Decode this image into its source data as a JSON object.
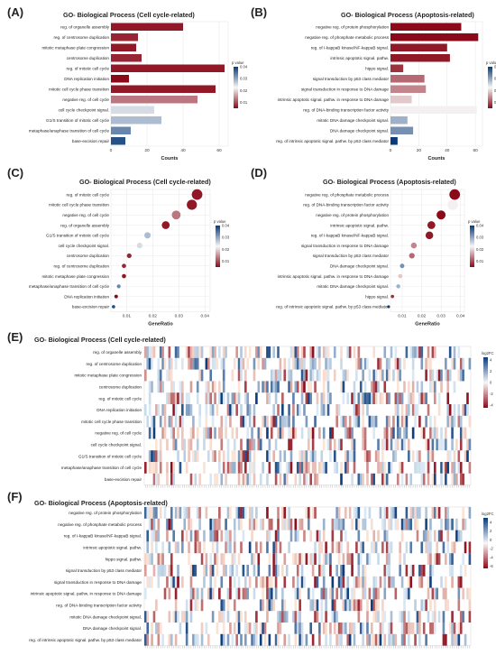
{
  "panels": {
    "A": {
      "letter": "(A)",
      "title": "GO- Biological Process (Cell cycle-related)"
    },
    "B": {
      "letter": "(B)",
      "title": "GO- Biological Process (Apoptosis-related)"
    },
    "C": {
      "letter": "(C)",
      "title": "GO- Biological Process (Cell cycle-related)"
    },
    "D": {
      "letter": "(D)",
      "title": "GO- Biological Process (Apoptosis-related)"
    },
    "E": {
      "letter": "(E)",
      "title": "GO- Biological Process (Cell cycle-related)"
    },
    "F": {
      "letter": "(F)",
      "title": "GO- Biological Process (Apoptosis-related)"
    }
  },
  "colors": {
    "low": "#0a3a7a",
    "mid": "#f7f7f7",
    "high": "#8b0a1a",
    "grid": "#e6e6e6",
    "panel_bg": "#ffffff"
  },
  "chart_data": [
    {
      "id": "A",
      "type": "bar",
      "orientation": "horizontal",
      "xlabel": "Counts",
      "xlim": [
        0,
        65
      ],
      "xticks": [
        0,
        20,
        40,
        60
      ],
      "legend": {
        "title": "p value",
        "ticks": [
          0.04,
          0.03,
          0.02,
          0.01
        ],
        "range": [
          0.005,
          0.04
        ]
      },
      "categories": [
        "reg. of organelle assembly",
        "reg. of centrosome duplication",
        "mitotic metaphase plate congression",
        "centrosome duplication",
        "reg. of mitotic cell cycle",
        "DNA replication initiation",
        "mitotic cell cycle phase transition",
        "negative reg. of cell cycle",
        "cell cycle checkpoint signal.",
        "G1/S transition of mitotic cell cycle",
        "metaphase/anaphase transition of cell cycle",
        "base-excision repair"
      ],
      "values": [
        40,
        15,
        14,
        17,
        63,
        10,
        58,
        48,
        24,
        28,
        11,
        8
      ],
      "pvalues": [
        0.006,
        0.007,
        0.006,
        0.007,
        0.006,
        0.005,
        0.006,
        0.013,
        0.025,
        0.028,
        0.033,
        0.038
      ]
    },
    {
      "id": "B",
      "type": "bar",
      "orientation": "horizontal",
      "xlabel": "Counts",
      "xlim": [
        0,
        65
      ],
      "xticks": [
        0,
        20,
        40,
        60
      ],
      "legend": {
        "title": "p value",
        "ticks": [
          0.04,
          0.03,
          0.02,
          0.01
        ],
        "range": [
          0.005,
          0.04
        ]
      },
      "categories": [
        "negative reg. of protein phosphorylation",
        "negative reg. of phosphate metabolic process",
        "reg. of I-kappaB kinase/NF-kappaB signal.",
        "intrinsic apoptotic signal. pathw.",
        "hippo signal.",
        "signal transduction by p53 class mediator",
        "signal transduction in response to DNA damage",
        "intrinsic apoptotic signal. pathw. in response to DNA damage",
        "reg. of DNA-binding transcription factor activity",
        "mitotic DNA damage checkpoint signal.",
        "DNA damage checkpoint signal.",
        "reg. of intrinsic apoptotic signal. pathw. by p53 class mediator"
      ],
      "values": [
        50,
        62,
        40,
        42,
        9,
        24,
        25,
        15,
        61,
        12,
        16,
        5
      ],
      "pvalues": [
        0.005,
        0.005,
        0.006,
        0.006,
        0.008,
        0.012,
        0.014,
        0.019,
        0.022,
        0.029,
        0.032,
        0.04
      ]
    },
    {
      "id": "C",
      "type": "scatter",
      "xlabel": "GeneRatio",
      "xlim": [
        0.004,
        0.042
      ],
      "xticks": [
        0.01,
        0.02,
        0.03,
        0.04
      ],
      "legend": {
        "title": "p value",
        "ticks": [
          0.04,
          0.03,
          0.02,
          0.01
        ],
        "range": [
          0.005,
          0.04
        ]
      },
      "categories": [
        "reg. of mitotic cell cycle",
        "mitotic cell cycle phase transition",
        "negative reg. of cell cycle",
        "reg. of organelle assembly",
        "G1/S transition of mitotic cell cycle",
        "cell cycle checkpoint signal.",
        "centrosome duplication",
        "reg. of centrosome duplication",
        "mitotic metaphase plate congression",
        "metaphase/anaphase transition of cell cycle",
        "DNA replication initiation",
        "base-excision repair"
      ],
      "x": [
        0.037,
        0.035,
        0.029,
        0.025,
        0.018,
        0.015,
        0.011,
        0.009,
        0.009,
        0.007,
        0.006,
        0.005
      ],
      "pvalues": [
        0.006,
        0.006,
        0.013,
        0.006,
        0.028,
        0.025,
        0.007,
        0.007,
        0.006,
        0.033,
        0.005,
        0.038
      ]
    },
    {
      "id": "D",
      "type": "scatter",
      "xlabel": "GeneRatio",
      "xlim": [
        0.004,
        0.042
      ],
      "xticks": [
        0.01,
        0.02,
        0.03,
        0.04
      ],
      "legend": {
        "title": "p value",
        "ticks": [
          0.04,
          0.03,
          0.02,
          0.01
        ],
        "range": [
          0.005,
          0.04
        ]
      },
      "categories": [
        "negative reg. of phosphate metabolic process",
        "reg. of DNA-binding transcription factor activity",
        "negative reg. of protein phosphorylation",
        "intrinsic apoptotic signal. pathw.",
        "reg. of I-kappaB kinase/NF-kappaB signal.",
        "signal transduction in response to DNA damage",
        "signal transduction by p53 class mediator",
        "DNA damage checkpoint signal.",
        "intrinsic apoptotic signal. pathw. in response to DNA damage",
        "mitotic DNA damage checkpoint signal.",
        "hippo signal.",
        "reg. of intrinsic apoptotic signal. pathw. by p53 class mediator"
      ],
      "x": [
        0.037,
        0.036,
        0.03,
        0.025,
        0.024,
        0.016,
        0.015,
        0.01,
        0.009,
        0.008,
        0.005,
        0.003
      ],
      "pvalues": [
        0.005,
        0.022,
        0.005,
        0.006,
        0.006,
        0.014,
        0.012,
        0.032,
        0.019,
        0.029,
        0.008,
        0.04
      ]
    },
    {
      "id": "E",
      "type": "heatmap",
      "legend": {
        "title": "log2FC",
        "ticks": [
          4,
          2,
          0,
          -2,
          -4
        ],
        "range": [
          -4.5,
          4.5
        ]
      },
      "rows": [
        "reg. of organelle assembly",
        "reg. of centrosome duplication",
        "mitotic metaphase plate congression",
        "centrosome duplication",
        "reg. of mitotic cell cycle",
        "DNA replication initiation",
        "mitotic cell cycle phase transition",
        "negative reg. of cell cycle",
        "cell cycle checkpoint signal.",
        "G1/S transition of mitotic cell cycle",
        "metaphase/anaphase transition of cell cycle",
        "base-excision repair"
      ],
      "column_count": 150
    },
    {
      "id": "F",
      "type": "heatmap",
      "legend": {
        "title": "log2FC",
        "ticks": [
          4,
          2,
          0,
          -2,
          -4,
          -6
        ],
        "range": [
          -6.5,
          5
        ]
      },
      "rows": [
        "negative reg. of protein phosphorylation",
        "negative reg. of phosphate metabolic process",
        "reg. of I-kappaB kinase/NF-kappaB signal.",
        "intrinsic apoptotic signal. pathw.",
        "hippo signal. pathw.",
        "signal transduction by p53 class mediator",
        "signal transduction in response to DNA damage",
        "intrinsic apoptotic signal. pathw. in response to DNA damage",
        "reg. of DNA-binding transcription factor activity",
        "mitotic DNA damage checkpoint signal.",
        "DNA damage checkpoint signal.",
        "reg. of intrinsic apoptotic signal. pathw. by p53 class mediator"
      ],
      "column_count": 150
    }
  ]
}
